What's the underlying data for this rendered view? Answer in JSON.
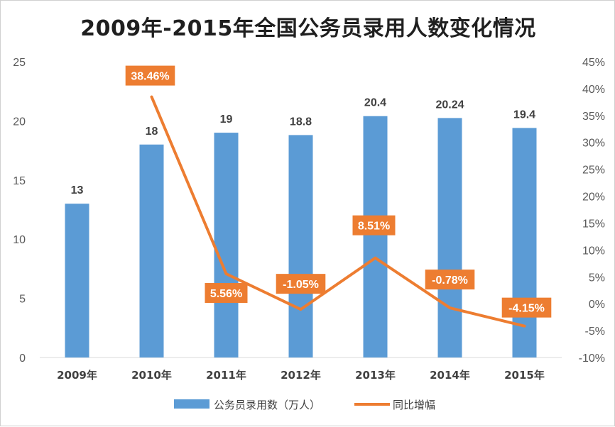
{
  "chart_data": {
    "type": "bar",
    "title": "2009年-2015年全国公务员录用人数变化情况",
    "categories": [
      "2009年",
      "2010年",
      "2011年",
      "2012年",
      "2013年",
      "2014年",
      "2015年"
    ],
    "series": [
      {
        "name": "公务员录用数（万人）",
        "type": "bar",
        "axis": "left",
        "values": [
          13,
          18,
          19,
          18.8,
          20.4,
          20.24,
          19.4
        ],
        "labels": [
          "13",
          "18",
          "19",
          "18.8",
          "20.4",
          "20.24",
          "19.4"
        ],
        "color": "#5b9bd5"
      },
      {
        "name": "同比增幅",
        "type": "line",
        "axis": "right",
        "values": [
          null,
          38.46,
          5.56,
          -1.05,
          8.51,
          -0.78,
          -4.15
        ],
        "labels": [
          "",
          "38.46%",
          "5.56%",
          "-1.05%",
          "8.51%",
          "-0.78%",
          "-4.15%"
        ],
        "color": "#ed7d31"
      }
    ],
    "y_left": {
      "min": 0,
      "max": 25,
      "step": 5,
      "ticks": [
        "0",
        "5",
        "10",
        "15",
        "20",
        "25"
      ]
    },
    "y_right": {
      "min": -10,
      "max": 45,
      "step": 5,
      "ticks": [
        "-10%",
        "-5%",
        "0%",
        "5%",
        "10%",
        "15%",
        "20%",
        "25%",
        "30%",
        "35%",
        "40%",
        "45%"
      ]
    },
    "grid": false,
    "legend_position": "bottom"
  }
}
